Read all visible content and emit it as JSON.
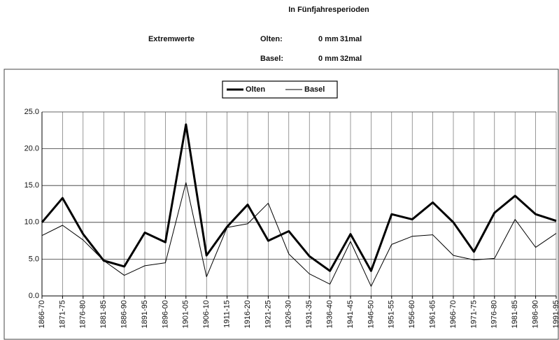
{
  "header": {
    "subtitle": "In Fünfjahresperioden",
    "extremes_label": "Extremwerte",
    "rows": [
      {
        "station": "Olten:",
        "value": "0 mm",
        "count": "31mal"
      },
      {
        "station": "Basel:",
        "value": "0 mm",
        "count": "32mal"
      }
    ]
  },
  "chart_data": {
    "type": "line",
    "categories": [
      "1866-70",
      "1871-75",
      "1876-80",
      "1881-85",
      "1886-90",
      "1891-95",
      "1896-00",
      "1901-05",
      "1906-10",
      "1911-15",
      "1916-20",
      "1921-25",
      "1926-30",
      "1931-35",
      "1936-40",
      "1941-45",
      "1946-50",
      "1951-55",
      "1956-60",
      "1961-65",
      "1966-70",
      "1971-75",
      "1976-80",
      "1981-85",
      "1986-90",
      "1991-95"
    ],
    "series": [
      {
        "name": "Olten",
        "color": "#000000",
        "width": 3,
        "values": [
          10.0,
          13.3,
          8.4,
          4.8,
          4.0,
          8.6,
          7.3,
          23.3,
          5.5,
          9.4,
          12.4,
          7.5,
          8.8,
          5.4,
          3.4,
          8.4,
          3.4,
          11.1,
          10.4,
          12.7,
          10.0,
          6.0,
          11.3,
          13.6,
          11.1,
          10.2
        ]
      },
      {
        "name": "Basel",
        "color": "#000000",
        "width": 1,
        "values": [
          8.2,
          9.6,
          7.6,
          4.8,
          2.8,
          4.1,
          4.5,
          15.4,
          2.6,
          9.3,
          9.8,
          12.6,
          5.7,
          3.0,
          1.6,
          7.4,
          1.3,
          7.0,
          8.1,
          8.3,
          5.5,
          4.9,
          5.1,
          10.4,
          6.6,
          8.5
        ]
      }
    ],
    "ylim": [
      0,
      25
    ],
    "yticks": [
      {
        "value": 0,
        "label": "0.0"
      },
      {
        "value": 5,
        "label": "5.0"
      },
      {
        "value": 10,
        "label": "10.0"
      },
      {
        "value": 15,
        "label": "15.0"
      },
      {
        "value": 20,
        "label": "20.0"
      },
      {
        "value": 25,
        "label": "25.0"
      }
    ],
    "grid": true,
    "legend": "top"
  }
}
